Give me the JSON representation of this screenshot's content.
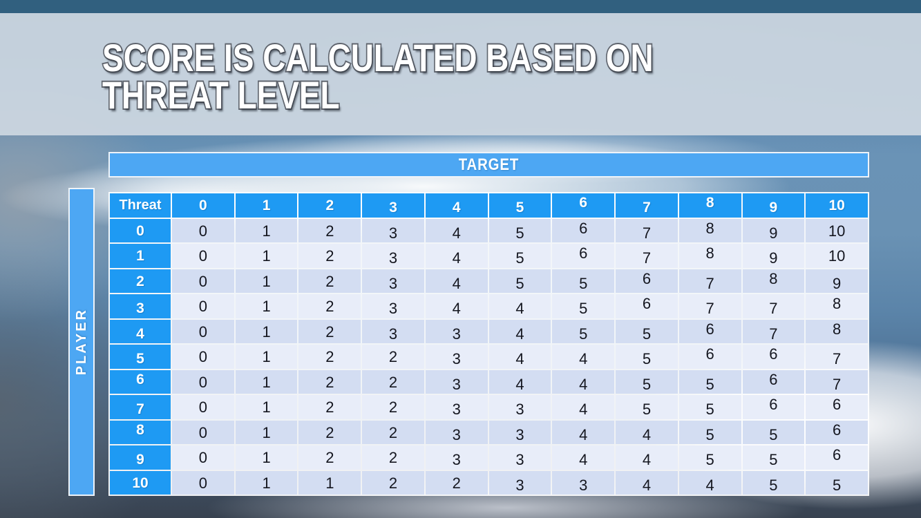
{
  "slide": {
    "title_line1": "SCORE IS CALCULATED BASED ON",
    "title_line2": "THREAT LEVEL"
  },
  "matrix": {
    "target_label": "TARGET",
    "player_label": "PLAYER",
    "corner_label": "Threat",
    "column_headers": [
      "0",
      "1",
      "2",
      "3",
      "4",
      "5",
      "6",
      "7",
      "8",
      "9",
      "10"
    ],
    "rows": [
      {
        "header": "0",
        "values": [
          "0",
          "1",
          "2",
          "3",
          "4",
          "5",
          "6",
          "7",
          "8",
          "9",
          "10"
        ]
      },
      {
        "header": "1",
        "values": [
          "0",
          "1",
          "2",
          "3",
          "4",
          "5",
          "6",
          "7",
          "8",
          "9",
          "10"
        ]
      },
      {
        "header": "2",
        "values": [
          "0",
          "1",
          "2",
          "3",
          "4",
          "5",
          "5",
          "6",
          "7",
          "8",
          "9"
        ]
      },
      {
        "header": "3",
        "values": [
          "0",
          "1",
          "2",
          "3",
          "4",
          "4",
          "5",
          "6",
          "7",
          "7",
          "8"
        ]
      },
      {
        "header": "4",
        "values": [
          "0",
          "1",
          "2",
          "3",
          "3",
          "4",
          "5",
          "5",
          "6",
          "7",
          "8"
        ]
      },
      {
        "header": "5",
        "values": [
          "0",
          "1",
          "2",
          "2",
          "3",
          "4",
          "4",
          "5",
          "6",
          "6",
          "7"
        ]
      },
      {
        "header": "6",
        "values": [
          "0",
          "1",
          "2",
          "2",
          "3",
          "4",
          "4",
          "5",
          "5",
          "6",
          "7"
        ]
      },
      {
        "header": "7",
        "values": [
          "0",
          "1",
          "2",
          "2",
          "3",
          "3",
          "4",
          "5",
          "5",
          "6",
          "6"
        ]
      },
      {
        "header": "8",
        "values": [
          "0",
          "1",
          "2",
          "2",
          "3",
          "3",
          "4",
          "4",
          "5",
          "5",
          "6"
        ]
      },
      {
        "header": "9",
        "values": [
          "0",
          "1",
          "2",
          "2",
          "3",
          "3",
          "4",
          "4",
          "5",
          "5",
          "6"
        ]
      },
      {
        "header": "10",
        "values": [
          "0",
          "1",
          "1",
          "2",
          "2",
          "3",
          "3",
          "4",
          "4",
          "5",
          "5"
        ]
      }
    ]
  },
  "colors": {
    "header_cell_blue": "#1e9af3",
    "axis_bar_blue": "#4da7f3",
    "row_even": "#d3ddf2",
    "row_odd": "#e8edf9",
    "top_bar": "#31607f",
    "title_band": "#ced7e1",
    "cell_text": "#14161f",
    "title_text": "#ffffff"
  }
}
